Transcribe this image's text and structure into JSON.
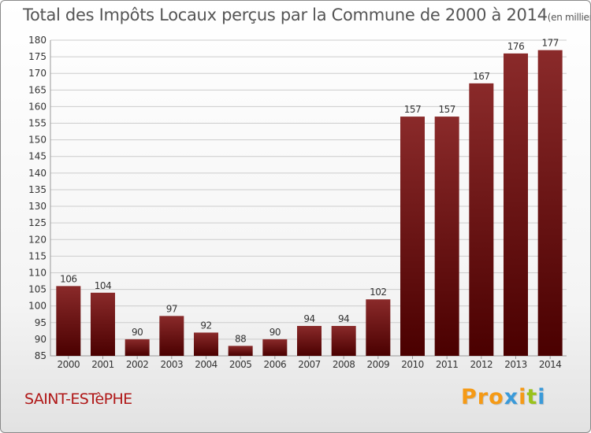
{
  "header": {
    "title": "Total des Impôts Locaux perçus par la Commune de 2000 à 2014",
    "unit": "(en milliers d'€)"
  },
  "footer": {
    "commune": "SAINT-ESTèPHE",
    "brand": "Proxiti",
    "brand_colors": [
      "#f59a16",
      "#f59a16",
      "#f59a16",
      "#3a9ad9",
      "#f59a16",
      "#9ac21c",
      "#3a9ad9"
    ]
  },
  "colors": {
    "bar_top": "#8a2a2a",
    "bar_bottom": "#4a0000",
    "grid": "#cccccc",
    "axis_text": "#333333"
  },
  "chart_data": {
    "type": "bar",
    "title": "Total des Impôts Locaux perçus par la Commune de 2000 à 2014",
    "xlabel": "",
    "ylabel": "en milliers d'€",
    "categories": [
      "2000",
      "2001",
      "2002",
      "2003",
      "2004",
      "2005",
      "2006",
      "2007",
      "2008",
      "2009",
      "2010",
      "2011",
      "2012",
      "2013",
      "2014"
    ],
    "values": [
      106,
      104,
      90,
      97,
      92,
      88,
      90,
      94,
      94,
      102,
      157,
      157,
      167,
      176,
      177
    ],
    "ylim": [
      85,
      180
    ],
    "ytick_step": 5,
    "grid": true
  }
}
